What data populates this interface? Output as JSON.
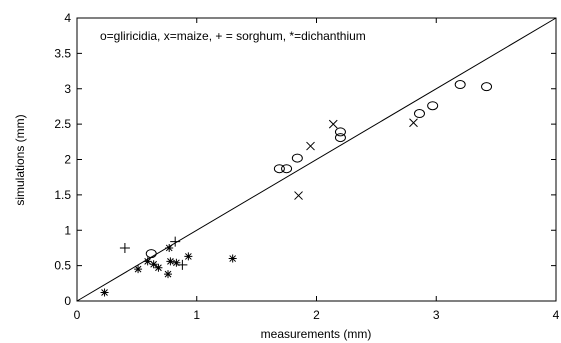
{
  "chart_data": {
    "type": "scatter",
    "title": "",
    "xlabel": "measurements (mm)",
    "ylabel": "simulations (mm)",
    "xlim": [
      0,
      4
    ],
    "ylim": [
      0,
      4
    ],
    "x_ticks": [
      "0",
      "1",
      "2",
      "3",
      "4"
    ],
    "y_ticks": [
      "0",
      "0.5",
      "1",
      "1.5",
      "2",
      "2.5",
      "3",
      "3.5",
      "4"
    ],
    "grid": false,
    "reference_line": {
      "type": "1:1",
      "from": [
        0,
        0
      ],
      "to": [
        4,
        4
      ]
    },
    "legend_text": "o=gliricidia, x=maize, + = sorghum, *=dichanthium",
    "legend_placement": "top-left, inside plot",
    "colors": {
      "axes": "#000000",
      "markers": "#000000",
      "background": "#ffffff"
    },
    "series": [
      {
        "name": "gliricidia",
        "marker": "o",
        "points": [
          [
            0.62,
            0.67
          ],
          [
            1.69,
            1.87
          ],
          [
            1.75,
            1.87
          ],
          [
            1.84,
            2.02
          ],
          [
            2.2,
            2.31
          ],
          [
            2.2,
            2.39
          ],
          [
            2.86,
            2.65
          ],
          [
            2.97,
            2.76
          ],
          [
            3.2,
            3.06
          ],
          [
            3.42,
            3.03
          ]
        ]
      },
      {
        "name": "maize",
        "marker": "x",
        "points": [
          [
            1.85,
            1.49
          ],
          [
            1.95,
            2.19
          ],
          [
            2.14,
            2.5
          ],
          [
            2.81,
            2.52
          ]
        ]
      },
      {
        "name": "sorghum",
        "marker": "+",
        "points": [
          [
            0.4,
            0.75
          ],
          [
            0.82,
            0.84
          ],
          [
            0.88,
            0.51
          ]
        ]
      },
      {
        "name": "dichanthium",
        "marker": "*",
        "points": [
          [
            0.23,
            0.12
          ],
          [
            0.51,
            0.45
          ],
          [
            0.59,
            0.56
          ],
          [
            0.64,
            0.52
          ],
          [
            0.68,
            0.47
          ],
          [
            0.76,
            0.38
          ],
          [
            0.77,
            0.75
          ],
          [
            0.78,
            0.56
          ],
          [
            0.83,
            0.54
          ],
          [
            0.93,
            0.63
          ],
          [
            1.3,
            0.6
          ]
        ]
      }
    ]
  }
}
